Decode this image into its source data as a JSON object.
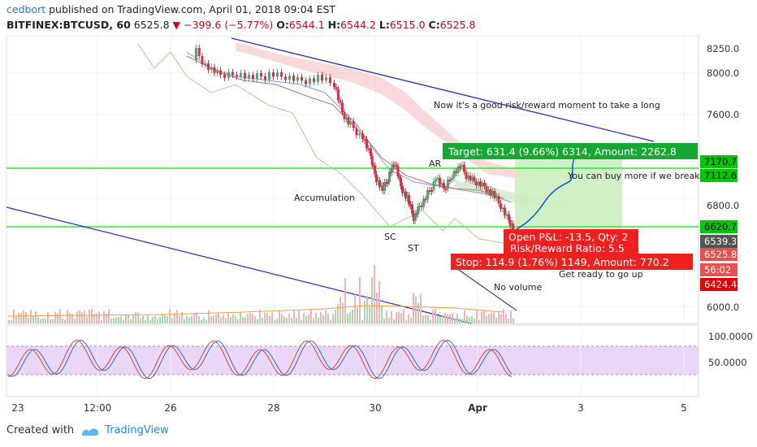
{
  "header": {
    "author": "cedbort",
    "published": "published on TradingView.com, April 01, 2018 09:04 EST",
    "symbol": "BITFINEX:BTCUSD, 60",
    "last": "6525.8",
    "change": "−399.6 (−5.77%)",
    "open_label": "O:",
    "open": "6544.1",
    "high_label": "H:",
    "high": "6544.2",
    "low_label": "L:",
    "low": "6515.0",
    "close_label": "C:",
    "close": "6525.8"
  },
  "price_axis": {
    "ticks": [
      "8250.0",
      "8000.0",
      "7600.0",
      "6800.0",
      "6000.0"
    ],
    "tags": [
      {
        "label": "7170.7",
        "color": "#00c800"
      },
      {
        "label": "7112.6",
        "color": "#00c800"
      },
      {
        "label": "6620.7",
        "color": "#00c800"
      },
      {
        "label": "6539.3",
        "color": "#555555"
      },
      {
        "label": "6525.8",
        "color": "#e55050"
      },
      {
        "label": "56:02",
        "color": "#e55050"
      },
      {
        "label": "6424.4",
        "color": "#e00000"
      }
    ]
  },
  "osc_axis": {
    "ticks": [
      "100.0000",
      "50.0000"
    ]
  },
  "time_axis": {
    "ticks": [
      "23",
      "12:00",
      "26",
      "28",
      "30",
      "Apr",
      "3",
      "5"
    ]
  },
  "annotations": {
    "long_text": "Now it's a good risk/reward moment to take a long",
    "accumulation": "Accumulation",
    "ar": "AR",
    "sc": "SC",
    "st": "ST",
    "buy_more": "You can buy more if we break",
    "ready": "Get ready to go up",
    "no_volume": "No volume"
  },
  "position": {
    "target": "Target: 631.4 (9.66%) 6314, Amount: 2262.8",
    "open_pl": "Open P&L: -13.5, Qty: 2",
    "rr": "Risk/Reward Ratio: 5.5",
    "stop": "Stop: 114.9 (1.76%) 1149, Amount: 770.2"
  },
  "footer": {
    "created_with": "Created with",
    "brand": "TradingView"
  },
  "colors": {
    "up": "#4fa86e",
    "down": "#d6324b",
    "trendline": "#2a2ad0",
    "level": "#2ee82e",
    "band": "#c9a6f0",
    "target": "#15a832",
    "stop": "#ee2020"
  }
}
